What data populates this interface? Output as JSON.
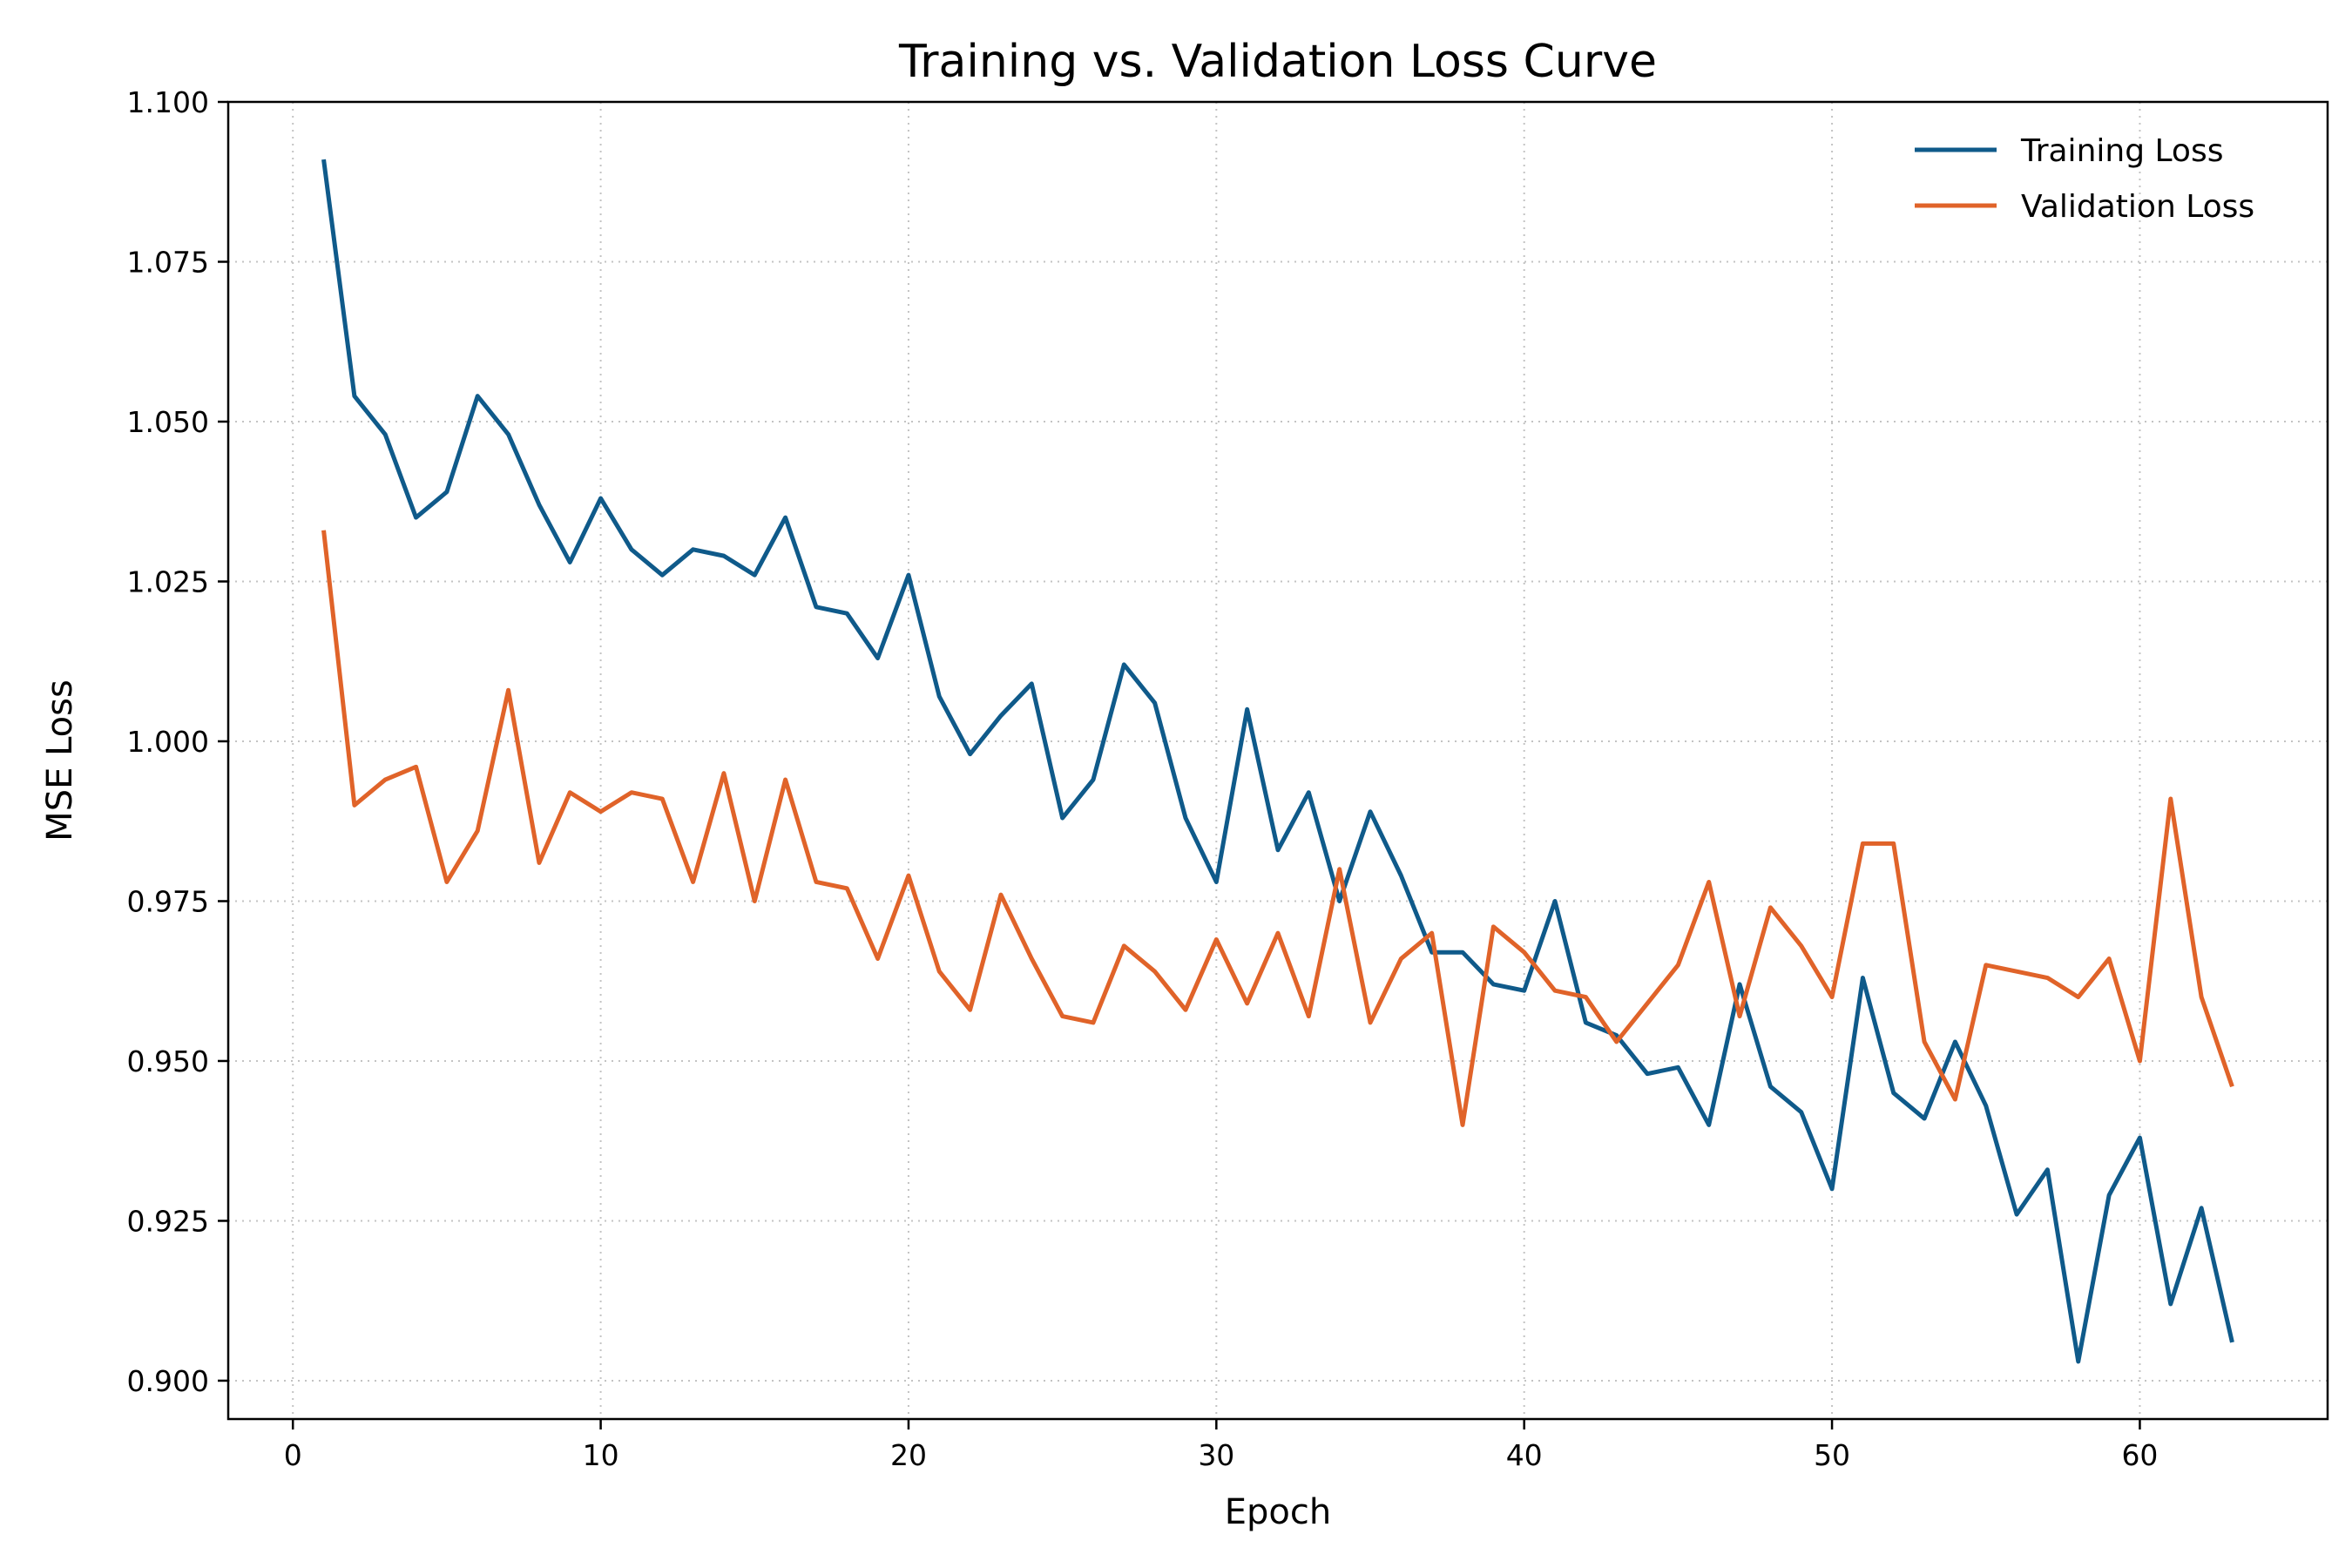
{
  "chart_data": {
    "type": "line",
    "title": "Training vs. Validation Loss Curve",
    "xlabel": "Epoch",
    "ylabel": "MSE Loss",
    "xlim": [
      -2.1,
      66.1
    ],
    "ylim": [
      0.894,
      1.1
    ],
    "xticks": [
      0,
      10,
      20,
      30,
      40,
      50,
      60
    ],
    "yticks": [
      0.9,
      0.925,
      0.95,
      0.975,
      1.0,
      1.025,
      1.05,
      1.075,
      1.1
    ],
    "ytick_labels": [
      "0.900",
      "0.925",
      "0.950",
      "0.975",
      "1.000",
      "1.025",
      "1.050",
      "1.075",
      "1.100"
    ],
    "grid": true,
    "legend_position": "top-right",
    "x": [
      1,
      2,
      3,
      4,
      5,
      6,
      7,
      8,
      9,
      10,
      11,
      12,
      13,
      14,
      15,
      16,
      17,
      18,
      19,
      20,
      21,
      22,
      23,
      24,
      25,
      26,
      27,
      28,
      29,
      30,
      31,
      32,
      33,
      34,
      35,
      36,
      37,
      38,
      39,
      40,
      41,
      42,
      43,
      44,
      45,
      46,
      47,
      48,
      49,
      50,
      51,
      52,
      53,
      54,
      55,
      56,
      57,
      58,
      59,
      60,
      61,
      62,
      63
    ],
    "series": [
      {
        "name": "Training Loss",
        "color": "#0f5a8a",
        "values": [
          1.091,
          1.054,
          1.048,
          1.035,
          1.039,
          1.054,
          1.048,
          1.037,
          1.028,
          1.038,
          1.03,
          1.026,
          1.03,
          1.029,
          1.026,
          1.035,
          1.021,
          1.02,
          1.013,
          1.026,
          1.007,
          0.998,
          1.004,
          1.009,
          0.988,
          0.994,
          1.012,
          1.006,
          0.988,
          0.978,
          1.005,
          0.983,
          0.992,
          0.975,
          0.989,
          0.979,
          0.967,
          0.967,
          0.962,
          0.961,
          0.975,
          0.956,
          0.954,
          0.948,
          0.949,
          0.94,
          0.962,
          0.946,
          0.942,
          0.93,
          0.963,
          0.945,
          0.941,
          0.953,
          0.943,
          0.926,
          0.933,
          0.903,
          0.929,
          0.938,
          0.912,
          0.927,
          0.906
        ]
      },
      {
        "name": "Validation Loss",
        "color": "#e06329",
        "values": [
          1.033,
          0.99,
          0.994,
          0.996,
          0.978,
          0.986,
          1.008,
          0.981,
          0.992,
          0.989,
          0.992,
          0.991,
          0.978,
          0.995,
          0.975,
          0.994,
          0.978,
          0.977,
          0.966,
          0.979,
          0.964,
          0.958,
          0.976,
          0.966,
          0.957,
          0.956,
          0.968,
          0.964,
          0.958,
          0.969,
          0.959,
          0.97,
          0.957,
          0.98,
          0.956,
          0.966,
          0.97,
          0.94,
          0.971,
          0.967,
          0.961,
          0.96,
          0.953,
          0.959,
          0.965,
          0.978,
          0.957,
          0.974,
          0.968,
          0.96,
          0.984,
          0.984,
          0.953,
          0.944,
          0.965,
          0.964,
          0.963,
          0.96,
          0.966,
          0.95,
          0.991,
          0.96,
          0.946
        ]
      }
    ]
  }
}
